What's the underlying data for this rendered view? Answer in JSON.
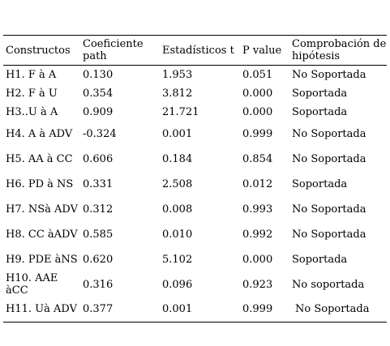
{
  "table": {
    "headers": [
      "Constructos",
      "Coeficiente path",
      "Estadísticos t",
      "P value",
      "Comprobación de hipótesis"
    ],
    "rows": [
      {
        "constructo": "H1. F à A",
        "coef": "0.130",
        "t": "1.953",
        "p": "0.051",
        "comprobacion": "No Soportada"
      },
      {
        "constructo": "H2. F à U",
        "coef": "0.354",
        "t": "3.812",
        "p": "0.000",
        "comprobacion": "Soportada"
      },
      {
        "constructo": "H3..U à A",
        "coef": "0.909",
        "t": "21.721",
        "p": "0.000",
        "comprobacion": "Soportada"
      },
      {
        "constructo": "H4. A à ADV",
        "coef": "-0.324",
        "t": "0.001",
        "p": "0.999",
        "comprobacion": "No Soportada"
      },
      {
        "constructo": "H5. AA à CC",
        "coef": "0.606",
        "t": "0.184",
        "p": "0.854",
        "comprobacion": "No Soportada"
      },
      {
        "constructo": "H6. PD à NS",
        "coef": "0.331",
        "t": "2.508",
        "p": "0.012",
        "comprobacion": "Soportada"
      },
      {
        "constructo": "H7. NSà ADV",
        "coef": "0.312",
        "t": "0.008",
        "p": "0.993",
        "comprobacion": "No Soportada"
      },
      {
        "constructo": "H8. CC àADV",
        "coef": "0.585",
        "t": "0.010",
        "p": "0.992",
        "comprobacion": "No Soportada"
      },
      {
        "constructo": "H9. PDE àNS",
        "coef": "0.620",
        "t": "5.102",
        "p": "0.000",
        "comprobacion": "Soportada"
      },
      {
        "constructo": "H10. AAE àCC",
        "coef": "0.316",
        "t": "0.096",
        "p": "0.923",
        "comprobacion": "No soportada"
      },
      {
        "constructo": "H11. Uà ADV",
        "coef": "0.377",
        "t": "0.001",
        "p": "0.999",
        "comprobacion": "No Soportada"
      }
    ]
  }
}
